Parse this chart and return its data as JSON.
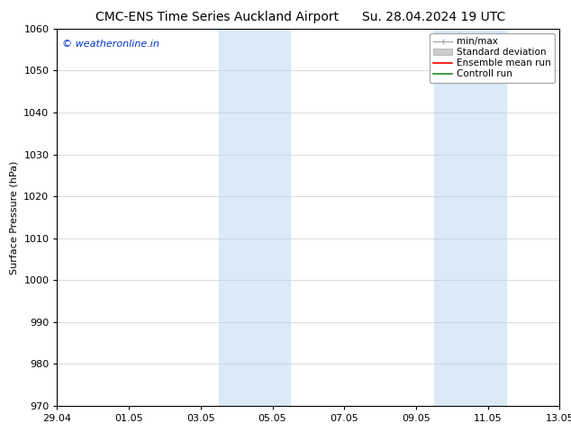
{
  "title_left": "CMC-ENS Time Series Auckland Airport",
  "title_right": "Su. 28.04.2024 19 UTC",
  "ylabel": "Surface Pressure (hPa)",
  "watermark": "© weatheronline.in",
  "watermark_color": "#0033cc",
  "ylim": [
    970,
    1060
  ],
  "yticks": [
    970,
    980,
    990,
    1000,
    1010,
    1020,
    1030,
    1040,
    1050,
    1060
  ],
  "xtick_labels": [
    "29.04",
    "01.05",
    "03.05",
    "05.05",
    "07.05",
    "09.05",
    "11.05",
    "13.05"
  ],
  "xtick_positions": [
    0,
    2,
    4,
    6,
    8,
    10,
    12,
    14
  ],
  "shaded_bands": [
    {
      "x_start": 4.5,
      "x_end": 6.5,
      "color": "#daeaf7"
    },
    {
      "x_start": 10.5,
      "x_end": 12.5,
      "color": "#daeaf7"
    }
  ],
  "legend_items": [
    {
      "label": "min/max",
      "color": "#aaaaaa",
      "style": "minmax"
    },
    {
      "label": "Standard deviation",
      "color": "#cccccc",
      "style": "stddev"
    },
    {
      "label": "Ensemble mean run",
      "color": "#ff0000",
      "style": "line"
    },
    {
      "label": "Controll run",
      "color": "#228822",
      "style": "line"
    }
  ],
  "background_color": "#ffffff",
  "grid_color": "#cccccc",
  "font_size_title": 10,
  "font_size_axis": 8,
  "font_size_legend": 7.5,
  "font_size_watermark": 8
}
